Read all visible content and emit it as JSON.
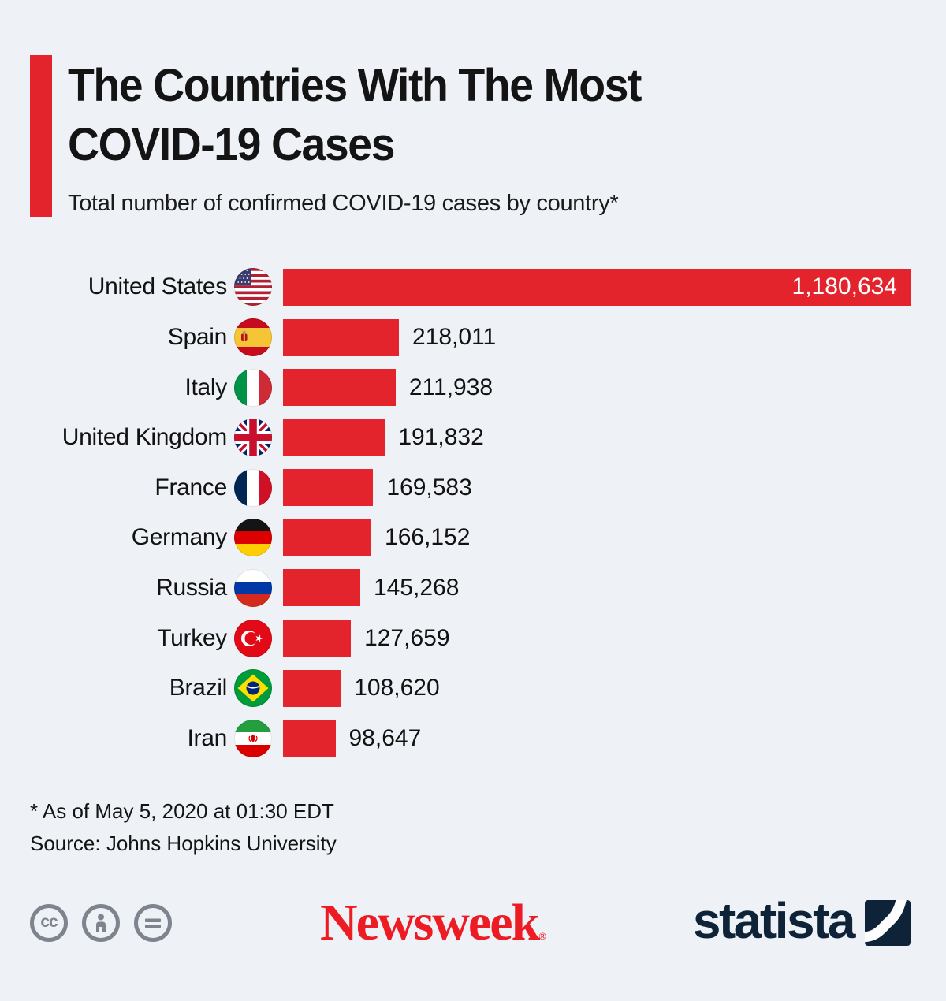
{
  "header": {
    "title_line1": "The Countries With The Most",
    "title_line2": "COVID-19 Cases",
    "subtitle": "Total number of confirmed COVID-19 cases by country*"
  },
  "chart_data": {
    "type": "bar",
    "orientation": "horizontal",
    "title": "The Countries With The Most COVID-19 Cases",
    "subtitle": "Total number of confirmed COVID-19 cases by country*",
    "xlim": [
      0,
      1180634
    ],
    "grid": false,
    "legend": false,
    "bar_color": "#e3242d",
    "categories": [
      "United States",
      "Spain",
      "Italy",
      "United Kingdom",
      "France",
      "Germany",
      "Russia",
      "Turkey",
      "Brazil",
      "Iran"
    ],
    "values": [
      1180634,
      218011,
      211938,
      191832,
      169583,
      166152,
      145268,
      127659,
      108620,
      98647
    ],
    "rows": [
      {
        "country": "United States",
        "value": 1180634,
        "label": "1,180,634"
      },
      {
        "country": "Spain",
        "value": 218011,
        "label": "218,011"
      },
      {
        "country": "Italy",
        "value": 211938,
        "label": "211,938"
      },
      {
        "country": "United Kingdom",
        "value": 191832,
        "label": "191,832"
      },
      {
        "country": "France",
        "value": 169583,
        "label": "169,583"
      },
      {
        "country": "Germany",
        "value": 166152,
        "label": "166,152"
      },
      {
        "country": "Russia",
        "value": 145268,
        "label": "145,268"
      },
      {
        "country": "Turkey",
        "value": 127659,
        "label": "127,659"
      },
      {
        "country": "Brazil",
        "value": 108620,
        "label": "108,620"
      },
      {
        "country": "Iran",
        "value": 98647,
        "label": "98,647"
      }
    ]
  },
  "footer": {
    "footnote": "* As of May 5, 2020 at 01:30 EDT",
    "source": "Source: Johns Hopkins University"
  },
  "branding": {
    "newsweek_label": "Newsweek",
    "newsweek_reg_mark": "®",
    "statista_label": "statista",
    "cc_text": "cc",
    "license_icons": [
      "creative-commons",
      "attribution",
      "no-derivatives"
    ]
  },
  "colors": {
    "background": "#eef2f6",
    "bar_red": "#e3242d",
    "accent_red": "#e3242d",
    "newsweek_red": "#ed1c24",
    "statista_navy": "#0e2338",
    "license_gray": "#7e848d",
    "text": "#121212"
  }
}
